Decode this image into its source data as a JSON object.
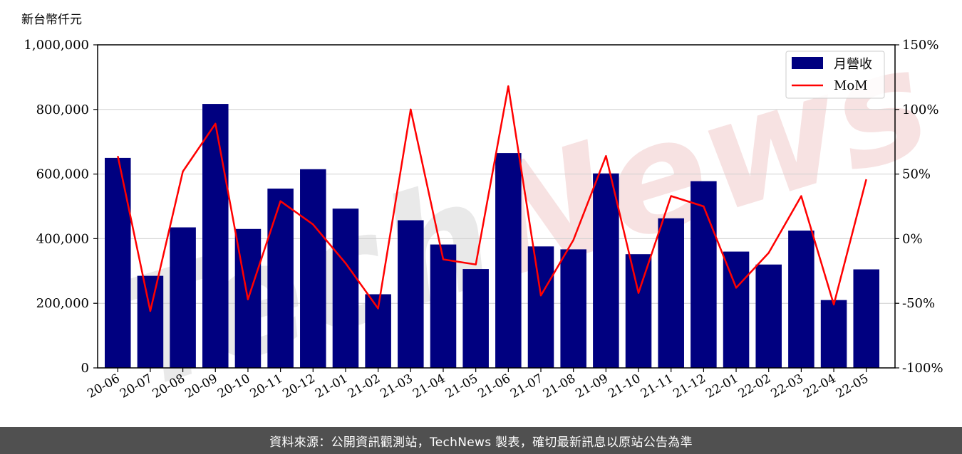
{
  "chart_data": {
    "type": "bar",
    "unit_label": "新台幣仟元",
    "categories": [
      "20-06",
      "20-07",
      "20-08",
      "20-09",
      "20-10",
      "20-11",
      "20-12",
      "21-01",
      "21-02",
      "21-03",
      "21-04",
      "21-05",
      "21-06",
      "21-07",
      "21-08",
      "21-09",
      "21-10",
      "21-11",
      "21-12",
      "22-01",
      "22-02",
      "22-03",
      "22-04",
      "22-05"
    ],
    "series": [
      {
        "name": "月營收",
        "type": "bar",
        "axis": "left",
        "color": "#000080",
        "values": [
          650000,
          285000,
          435000,
          817000,
          430000,
          555000,
          615000,
          493000,
          228000,
          457000,
          382000,
          306000,
          665000,
          376000,
          367000,
          602000,
          352000,
          463000,
          578000,
          360000,
          320000,
          425000,
          210000,
          305000
        ]
      },
      {
        "name": "MoM",
        "type": "line",
        "axis": "right",
        "color": "#ff0000",
        "values": [
          64,
          -56,
          52,
          89,
          -47,
          29,
          11,
          -19,
          -54,
          100,
          -16,
          -20,
          118,
          -44,
          -1,
          64,
          -42,
          33,
          25,
          -38,
          -11,
          33,
          -51,
          46
        ]
      }
    ],
    "ylim": [
      0,
      1000000
    ],
    "y_ticks": [
      "0",
      "200,000",
      "400,000",
      "600,000",
      "800,000",
      "1,000,000"
    ],
    "y2lim": [
      -100,
      150
    ],
    "y2_ticks": [
      "-100%",
      "-50%",
      "0%",
      "50%",
      "100%",
      "150%"
    ],
    "grid": "horizontal",
    "legend": "top-right",
    "watermark": "TechNews"
  },
  "footer": {
    "text": "資料來源：公開資訊觀測站，TechNews 製表，確切最新訊息以原站公告為準"
  }
}
